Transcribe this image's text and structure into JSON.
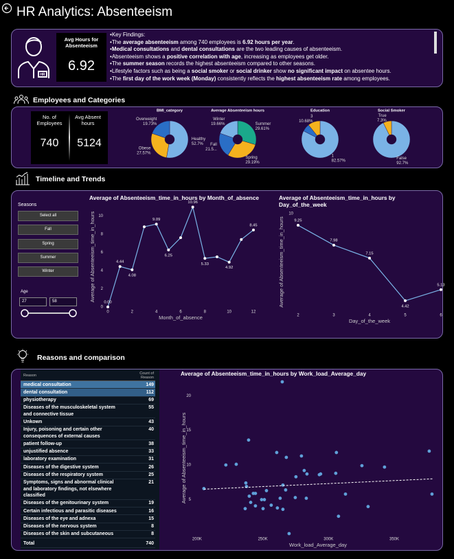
{
  "header": {
    "title": "HR Analytics: Absenteeism"
  },
  "kpi": {
    "label": "Avg Hours for Absenteeism",
    "value": 6.92
  },
  "key_findings": {
    "title": "Key Findings:",
    "lines": [
      [
        {
          "text": "The "
        },
        {
          "text": "average absenteeism",
          "bold": true
        },
        {
          "text": " among 740 employees is "
        },
        {
          "text": "6.92 hours per year",
          "bold": true
        },
        {
          "text": "."
        }
      ],
      [
        {
          "text": "Medical consultations",
          "bold": true
        },
        {
          "text": " and "
        },
        {
          "text": "dental consultations",
          "bold": true
        },
        {
          "text": " are the two leading causes of absenteeism."
        }
      ],
      [
        {
          "text": "Absenteeism shows a "
        },
        {
          "text": "positive correlation with age",
          "bold": true
        },
        {
          "text": ", increasing as employees get older."
        }
      ],
      [
        {
          "text": "The "
        },
        {
          "text": "summer season",
          "bold": true
        },
        {
          "text": " records the highest absenteeism compared to other seasons."
        }
      ],
      [
        {
          "text": "Lifestyle factors such as being a "
        },
        {
          "text": "social smoker",
          "bold": true
        },
        {
          "text": " or "
        },
        {
          "text": "social drinker",
          "bold": true
        },
        {
          "text": " show "
        },
        {
          "text": "no significant impact",
          "bold": true
        },
        {
          "text": " on absentee hours."
        }
      ],
      [
        {
          "text": "The "
        },
        {
          "text": "first day of the work week (Monday)",
          "bold": true
        },
        {
          "text": " consistently reflects the "
        },
        {
          "text": "highest absenteeism rate",
          "bold": true
        },
        {
          "text": " among employees."
        }
      ]
    ]
  },
  "sections": {
    "employees": "Employees and Categories",
    "timeline": "Timeline and Trends",
    "reasons": "Reasons and comparison"
  },
  "cards": [
    {
      "label": "No. of Employees",
      "value": 740
    },
    {
      "label": "Avg Absent hours",
      "value": 5124
    }
  ],
  "slicer": {
    "title": "Seasons",
    "options": [
      "Select all",
      "Fall",
      "Spring",
      "Summer",
      "Winter"
    ],
    "range_label": "Age",
    "range": [
      27,
      58
    ]
  },
  "table": {
    "columns": [
      "Reason",
      "Count of Reason"
    ],
    "rows": [
      [
        "medical consultation",
        149
      ],
      [
        "dental consultation",
        112
      ],
      [
        "physiotherapy",
        69
      ],
      [
        "Diseases of the musculoskeletal system and connective tissue",
        55
      ],
      [
        "Unkown",
        43
      ],
      [
        "Injury, poisoning and certain other consequences of external causes",
        40
      ],
      [
        "patient follow-up",
        38
      ],
      [
        "unjustified absence",
        33
      ],
      [
        "laboratory examination",
        31
      ],
      [
        "Diseases of the digestive system",
        26
      ],
      [
        "Diseases of the respiratory system",
        25
      ],
      [
        "Symptoms, signs and abnormal clinical and laboratory findings, not elsewhere classified",
        21
      ],
      [
        "Diseases of the genitourinary system",
        19
      ],
      [
        "Certain infectious and parasitic diseases",
        16
      ],
      [
        "Diseases of the eye and adnexa",
        15
      ],
      [
        "Diseases of the nervous system",
        8
      ],
      [
        "Diseases of the skin and subcutaneous",
        8
      ]
    ],
    "total": [
      "Total",
      740
    ]
  },
  "chart_data": [
    {
      "type": "pie",
      "title": "BMI_category",
      "categories": [
        "Healthy",
        "Obese",
        "Overweight"
      ],
      "values": [
        52.7,
        27.57,
        19.73
      ],
      "value_labels": [
        "52.7%",
        "27.57%",
        "19.73%"
      ],
      "colors": [
        "#7ab3e6",
        "#f5b21e",
        "#2a6ec6"
      ]
    },
    {
      "type": "pie",
      "title": "Average Absenteeism hours",
      "categories": [
        "Summer",
        "Spring",
        "Fall",
        "Winter"
      ],
      "values": [
        29.61,
        29.19,
        21.54,
        19.66
      ],
      "value_labels": [
        "29.61%",
        "29.19%",
        "21.5...",
        "19.66%"
      ],
      "colors": [
        "#1aa98b",
        "#f5b21e",
        "#2a6ec6",
        "#7ab3e6"
      ]
    },
    {
      "type": "pie",
      "title": "Education",
      "categories": [
        "1",
        null,
        "3"
      ],
      "values": [
        82.57,
        6.75,
        10.68
      ],
      "value_labels": [
        "82.57%",
        null,
        "10.68%"
      ],
      "colors": [
        "#7ab3e6",
        "#2a6ec6",
        "#f5b21e"
      ]
    },
    {
      "type": "pie",
      "title": "Social Smoker",
      "categories": [
        "False",
        "True"
      ],
      "values": [
        92.7,
        7.3
      ],
      "value_labels": [
        "92.7%",
        "7.3%"
      ],
      "colors": [
        "#7ab3e6",
        "#f5b21e"
      ]
    },
    {
      "type": "line",
      "title": "Average of Absenteeism_time_in_hours by Month_of_absence",
      "xlabel": "Month_of_absence",
      "ylabel": "Average of Absenteeism_time_in_hours",
      "x": [
        0,
        1,
        2,
        3,
        4,
        5,
        6,
        7,
        8,
        9,
        10,
        11,
        12
      ],
      "values": [
        0,
        4.44,
        4.08,
        8.8,
        9.09,
        6.25,
        7.6,
        10.96,
        5.33,
        5.5,
        4.92,
        7.4,
        8.45
      ],
      "value_labels": [
        "0.00",
        "4.44",
        "4.08",
        null,
        "9.09",
        "6.25",
        null,
        "10.96",
        "5.33",
        null,
        "4.92",
        null,
        "8.45"
      ],
      "color": "#7ab3e6",
      "xlim": [
        0,
        12
      ],
      "xticks": [
        0,
        2,
        4,
        6,
        8,
        10,
        12
      ],
      "ylim": [
        0,
        11
      ],
      "yticks": [
        0,
        2,
        4,
        6,
        8,
        10
      ]
    },
    {
      "type": "line",
      "title": "Average of Absenteeism_time_in_hours by Day_of_the_week",
      "xlabel": "Day_of_the_week",
      "ylabel": "Average of Absenteeism_time_in_hours",
      "x": [
        2,
        3,
        4,
        5,
        6
      ],
      "values": [
        9.25,
        7.98,
        7.15,
        4.42,
        5.13
      ],
      "value_labels": [
        "9.25",
        "7.98",
        "7.15",
        "4.42",
        "5.13"
      ],
      "color": "#7ab3e6",
      "xlim": [
        2,
        6
      ],
      "xticks": [
        2,
        3,
        4,
        5,
        6
      ],
      "ylim": [
        3.8,
        10
      ],
      "yticks": [
        10
      ]
    },
    {
      "type": "scatter",
      "title": "Average of Absenteeism_time_in_hours by Work_load_Average_day",
      "xlabel": "Work_load_Average_day",
      "ylabel": "Average of Absenteeism_time_in_hours",
      "color": "#5fa0d8",
      "x": [
        205200,
        221900,
        229800,
        237100,
        237600,
        239200,
        239700,
        240800,
        242800,
        244400,
        236600,
        244400,
        249100,
        251200,
        250200,
        252800,
        256400,
        260600,
        261100,
        263200,
        265300,
        265300,
        264800,
        267400,
        267900,
        270000,
        274700,
        275200,
        279400,
        281500,
        283100,
        283600,
        293000,
        294000,
        305500,
        306000,
        307600,
        312900,
        325400,
        330100,
        342600,
        376600,
        378700
      ],
      "values": [
        6.6,
        10.0,
        10.1,
        7.4,
        6.9,
        13.6,
        5.5,
        4.6,
        5.9,
        5.9,
        3.7,
        4.1,
        5.0,
        5.0,
        3.7,
        6.3,
        4.2,
        11.8,
        3.8,
        5.2,
        3.6,
        7.1,
        22.0,
        6.4,
        11.1,
        0.1,
        5.3,
        8.3,
        11.3,
        9.2,
        5.2,
        8.7,
        8.6,
        8.7,
        8.8,
        11.8,
        2.6,
        5.8,
        9.9,
        4.0,
        9.7,
        12.0,
        5.8
      ],
      "trendline": {
        "x": [
          205200,
          379200
        ],
        "values": [
          6.5,
          8.0
        ]
      },
      "xlim": [
        199000,
        385000
      ],
      "xticks": [
        {
          "value": 200000,
          "label": "200K"
        },
        {
          "value": 250000,
          "label": "250K"
        },
        {
          "value": 300000,
          "label": "300K"
        },
        {
          "value": 350000,
          "label": "350K"
        }
      ],
      "ylim": [
        0,
        22
      ],
      "yticks": [
        5,
        10,
        15,
        20
      ]
    }
  ]
}
